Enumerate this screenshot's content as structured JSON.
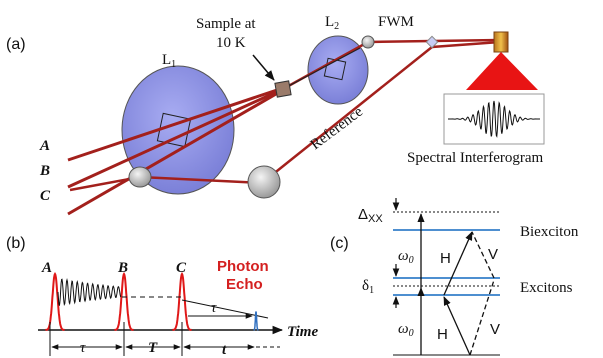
{
  "panel_a": {
    "label": "(a)",
    "lens1": "L",
    "lens1_sub": "1",
    "lens2": "L",
    "lens2_sub": "2",
    "sample_line1": "Sample at",
    "sample_line2": "10 K",
    "fwm": "FWM",
    "reference": "Reference",
    "spectral": "Spectral Interferogram",
    "beam_a": "A",
    "beam_b": "B",
    "beam_c": "C"
  },
  "panel_b": {
    "label": "(b)",
    "pulse_a": "A",
    "pulse_b": "B",
    "pulse_c": "C",
    "photon": "Photon",
    "echo": "Echo",
    "tau_lower": "τ",
    "tau_echo": "τ",
    "big_t": "T",
    "small_t": "t",
    "time": "Time"
  },
  "panel_c": {
    "label": "(c)",
    "delta_xx": "Δ",
    "delta_xx_sub": "XX",
    "omega_upper": "ω",
    "omega_upper_sub": "0",
    "delta1": "δ",
    "delta1_sub": "1",
    "omega_lower": "ω",
    "omega_lower_sub": "0",
    "h_upper": "H",
    "v_upper": "V",
    "h_lower": "H",
    "v_lower": "V",
    "biexciton": "Biexciton",
    "excitons": "Excitons"
  },
  "colors": {
    "beam": "#a3201c",
    "lens": "#8b8fe8",
    "pulse": "#e01818",
    "level": "#4e8fd0",
    "echo_text": "#d42020"
  }
}
